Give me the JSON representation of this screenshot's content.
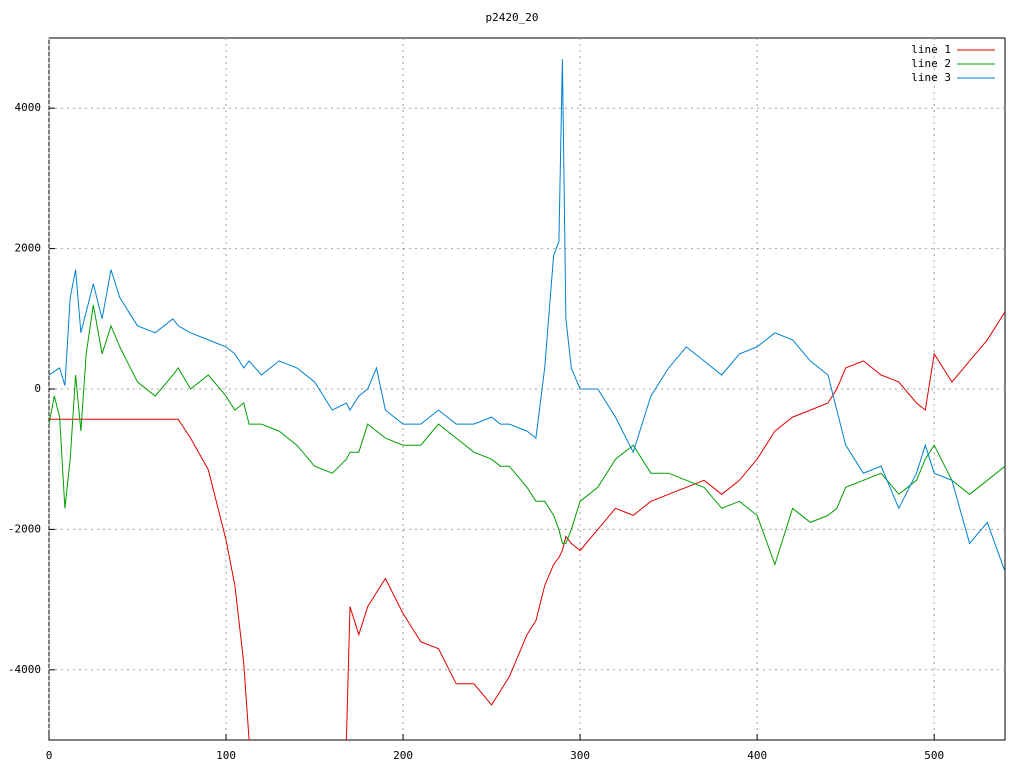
{
  "chart_data": {
    "type": "line",
    "title": "p2420_20",
    "x": [
      0,
      3,
      6,
      9,
      12,
      15,
      18,
      21,
      25,
      30,
      35,
      40,
      50,
      60,
      70,
      73,
      80,
      90,
      100,
      105,
      110,
      113,
      120,
      130,
      140,
      150,
      160,
      168,
      170,
      175,
      180,
      185,
      190,
      200,
      210,
      220,
      230,
      240,
      250,
      255,
      260,
      270,
      275,
      280,
      285,
      288,
      290,
      292,
      295,
      300,
      310,
      320,
      330,
      340,
      350,
      360,
      370,
      380,
      390,
      400,
      410,
      420,
      430,
      440,
      445,
      450,
      460,
      470,
      480,
      490,
      495,
      500,
      510,
      520,
      530,
      540
    ],
    "series": [
      {
        "name": "line 1",
        "color": "#e00000",
        "values": [
          -430,
          -430,
          -430,
          -430,
          -430,
          -430,
          -430,
          -430,
          -430,
          -430,
          -430,
          -430,
          -430,
          -430,
          -430,
          -430,
          -700,
          -1150,
          -2150,
          -2800,
          -3900,
          -5000,
          null,
          null,
          null,
          null,
          null,
          -5000,
          -3100,
          -3500,
          -3100,
          -2900,
          -2700,
          -3200,
          -3600,
          -3700,
          -4200,
          -4200,
          -4500,
          -4300,
          -4100,
          -3500,
          -3300,
          -2800,
          -2500,
          -2400,
          -2300,
          -2100,
          -2200,
          -2300,
          -2000,
          -1700,
          -1800,
          -1600,
          -1500,
          -1400,
          -1300,
          -1500,
          -1300,
          -1000,
          -600,
          -400,
          -300,
          -200,
          0,
          300,
          400,
          200,
          100,
          -200,
          -300,
          500,
          100,
          400,
          700,
          1100
        ]
      },
      {
        "name": "line 2",
        "color": "#00a000",
        "values": [
          -500,
          -100,
          -400,
          -1700,
          -1000,
          200,
          -600,
          500,
          1200,
          500,
          900,
          600,
          100,
          -100,
          200,
          300,
          0,
          200,
          -100,
          -300,
          -200,
          -500,
          -500,
          -600,
          -800,
          -1100,
          -1200,
          -1000,
          -900,
          -900,
          -500,
          -600,
          -700,
          -800,
          -800,
          -500,
          -700,
          -900,
          -1000,
          -1100,
          -1100,
          -1400,
          -1600,
          -1600,
          -1800,
          -2000,
          -2200,
          -2200,
          -2000,
          -1600,
          -1400,
          -1000,
          -800,
          -1200,
          -1200,
          -1300,
          -1400,
          -1700,
          -1600,
          -1800,
          -2500,
          -1700,
          -1900,
          -1800,
          -1700,
          -1400,
          -1300,
          -1200,
          -1500,
          -1300,
          -1000,
          -800,
          -1300,
          -1500,
          -1300,
          -1100
        ]
      },
      {
        "name": "line 3",
        "color": "#0080d0",
        "values": [
          200,
          250,
          300,
          50,
          1300,
          1700,
          800,
          1100,
          1500,
          1000,
          1700,
          1300,
          900,
          800,
          1000,
          900,
          800,
          700,
          600,
          500,
          300,
          400,
          200,
          400,
          300,
          100,
          -300,
          -200,
          -300,
          -100,
          0,
          300,
          -300,
          -500,
          -500,
          -300,
          -500,
          -500,
          -400,
          -500,
          -500,
          -600,
          -700,
          300,
          1900,
          2100,
          4700,
          1000,
          300,
          0,
          0,
          -400,
          -900,
          -100,
          300,
          600,
          400,
          200,
          500,
          600,
          800,
          700,
          400,
          200,
          -300,
          -800,
          -1200,
          -1100,
          -1700,
          -1200,
          -800,
          -1200,
          -1300,
          -2200,
          -1900,
          -2600
        ]
      }
    ],
    "xlim": [
      0,
      540
    ],
    "ylim": [
      -5000,
      5000
    ],
    "xticks": [
      0,
      100,
      200,
      300,
      400,
      500
    ],
    "yticks": [
      -4000,
      -2000,
      0,
      2000,
      4000
    ],
    "grid": true,
    "legend": "top-right"
  }
}
